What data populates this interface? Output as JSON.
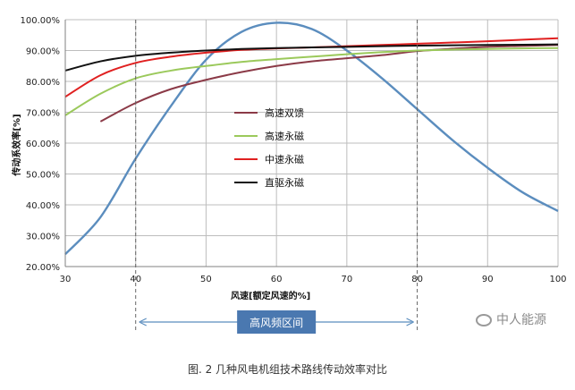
{
  "chart_data": {
    "type": "line",
    "xlabel": "风速[额定风速的%]",
    "ylabel": "传动系效率[%]",
    "xlim": [
      30,
      100
    ],
    "ylim": [
      0.2,
      1.0
    ],
    "x_ticks": [
      "30",
      "40",
      "50",
      "60",
      "70",
      "80",
      "90",
      "100"
    ],
    "y_ticks": [
      "20.00%",
      "30.00%",
      "40.00%",
      "50.00%",
      "60.00%",
      "70.00%",
      "80.00%",
      "90.00%",
      "100.00%"
    ],
    "grid": true,
    "legend_position": "center",
    "series": [
      {
        "name": "高速双馈",
        "color": "#8B3A47",
        "x": [
          35,
          40,
          45,
          50,
          55,
          60,
          65,
          70,
          75,
          80,
          85,
          90,
          95,
          100
        ],
        "y": [
          0.67,
          0.73,
          0.775,
          0.805,
          0.83,
          0.85,
          0.865,
          0.875,
          0.885,
          0.898,
          0.906,
          0.912,
          0.915,
          0.918
        ]
      },
      {
        "name": "高速永磁",
        "color": "#9BC95B",
        "x": [
          30,
          35,
          40,
          45,
          50,
          55,
          60,
          65,
          70,
          75,
          80,
          85,
          90,
          95,
          100
        ],
        "y": [
          0.69,
          0.76,
          0.81,
          0.835,
          0.85,
          0.863,
          0.872,
          0.88,
          0.888,
          0.895,
          0.9,
          0.903,
          0.905,
          0.907,
          0.908
        ]
      },
      {
        "name": "中速永磁",
        "color": "#E02020",
        "x": [
          30,
          35,
          40,
          45,
          50,
          55,
          60,
          65,
          70,
          75,
          80,
          85,
          90,
          95,
          100
        ],
        "y": [
          0.75,
          0.82,
          0.86,
          0.88,
          0.893,
          0.902,
          0.907,
          0.91,
          0.914,
          0.918,
          0.922,
          0.926,
          0.93,
          0.935,
          0.94
        ]
      },
      {
        "name": "直驱永磁",
        "color": "#111111",
        "x": [
          30,
          35,
          40,
          45,
          50,
          55,
          60,
          65,
          70,
          75,
          80,
          85,
          90,
          95,
          100
        ],
        "y": [
          0.835,
          0.865,
          0.883,
          0.893,
          0.9,
          0.905,
          0.908,
          0.91,
          0.912,
          0.914,
          0.916,
          0.917,
          0.918,
          0.919,
          0.92
        ]
      },
      {
        "name": "",
        "color": "#5B8DBE",
        "x": [
          30,
          35,
          40,
          45,
          50,
          55,
          60,
          65,
          70,
          75,
          80,
          85,
          90,
          95,
          100
        ],
        "y": [
          0.24,
          0.36,
          0.55,
          0.72,
          0.87,
          0.96,
          0.99,
          0.97,
          0.9,
          0.81,
          0.71,
          0.61,
          0.52,
          0.44,
          0.38
        ]
      }
    ],
    "annotations": {
      "band_label": "高风频区间",
      "band_range": [
        40,
        80
      ]
    }
  },
  "caption": "图. 2  几种风电机组技术路线传动效率对比",
  "watermark": "中人能源"
}
